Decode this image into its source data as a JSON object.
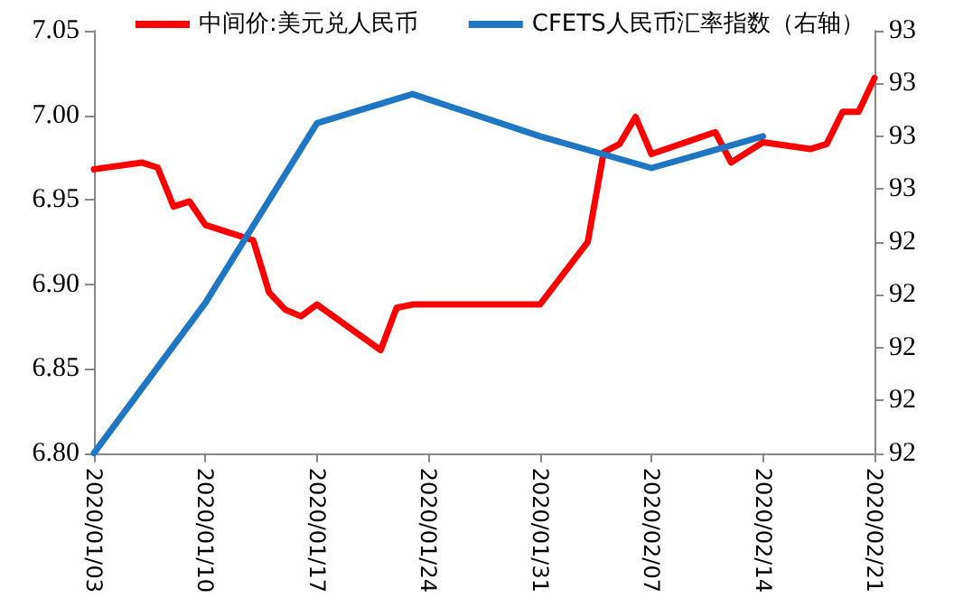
{
  "chart_data": {
    "type": "line",
    "legend": "top",
    "grid": false,
    "marker": "none",
    "line_style": "solid",
    "xlim": [
      "2020-01-03",
      "2020-02-21"
    ],
    "xticks": [
      {
        "value": "2020-01-03",
        "label": "2020/01/03"
      },
      {
        "value": "2020-01-10",
        "label": "2020/01/10"
      },
      {
        "value": "2020-01-17",
        "label": "2020/01/17"
      },
      {
        "value": "2020-01-24",
        "label": "2020/01/24"
      },
      {
        "value": "2020-01-31",
        "label": "2020/01/31"
      },
      {
        "value": "2020-02-07",
        "label": "2020/02/07"
      },
      {
        "value": "2020-02-14",
        "label": "2020/02/14"
      },
      {
        "value": "2020-02-21",
        "label": "2020/02/21"
      }
    ],
    "ylim": [
      6.8,
      7.05
    ],
    "yticks": [
      {
        "value": 6.8,
        "label": "6.80"
      },
      {
        "value": 6.85,
        "label": "6.85"
      },
      {
        "value": 6.9,
        "label": "6.90"
      },
      {
        "value": 6.95,
        "label": "6.95"
      },
      {
        "value": 7.0,
        "label": "7.00"
      },
      {
        "value": 7.05,
        "label": "7.05"
      }
    ],
    "y2lim": [
      91.6,
      93.2
    ],
    "y2ticks": [
      {
        "value": 91.6,
        "label": "92"
      },
      {
        "value": 91.8,
        "label": "92"
      },
      {
        "value": 92.0,
        "label": "92"
      },
      {
        "value": 92.2,
        "label": "92"
      },
      {
        "value": 92.4,
        "label": "92"
      },
      {
        "value": 92.6,
        "label": "93"
      },
      {
        "value": 92.8,
        "label": "93"
      },
      {
        "value": 93.0,
        "label": "93"
      },
      {
        "value": 93.2,
        "label": "93"
      }
    ],
    "series": [
      {
        "name": "中间价:美元兑人民币",
        "color": "#ff0000",
        "x": [
          "2020-01-03",
          "2020-01-06",
          "2020-01-07",
          "2020-01-08",
          "2020-01-09",
          "2020-01-10",
          "2020-01-13",
          "2020-01-14",
          "2020-01-15",
          "2020-01-16",
          "2020-01-17",
          "2020-01-21",
          "2020-01-22",
          "2020-01-23",
          "2020-01-31",
          "2020-02-03",
          "2020-02-04",
          "2020-02-05",
          "2020-02-06",
          "2020-02-07",
          "2020-02-11",
          "2020-02-12",
          "2020-02-14",
          "2020-02-17",
          "2020-02-18",
          "2020-02-19",
          "2020-02-20",
          "2020-02-21"
        ],
        "values": [
          6.968,
          6.972,
          6.969,
          6.946,
          6.949,
          6.935,
          6.926,
          6.895,
          6.885,
          6.881,
          6.888,
          6.861,
          6.886,
          6.888,
          6.888,
          6.925,
          6.978,
          6.983,
          6.999,
          6.977,
          6.99,
          6.972,
          6.984,
          6.98,
          6.983,
          7.002,
          7.002,
          7.022
        ]
      },
      {
        "name": "CFETS人民币汇率指数（右轴）",
        "color": "#1f77c4",
        "axis": "y2",
        "x": [
          "2020-01-03",
          "2020-01-10",
          "2020-01-17",
          "2020-01-23",
          "2020-01-31",
          "2020-02-07",
          "2020-02-14"
        ],
        "values": [
          91.6,
          92.17,
          92.85,
          92.96,
          92.8,
          92.68,
          92.8
        ]
      }
    ]
  }
}
